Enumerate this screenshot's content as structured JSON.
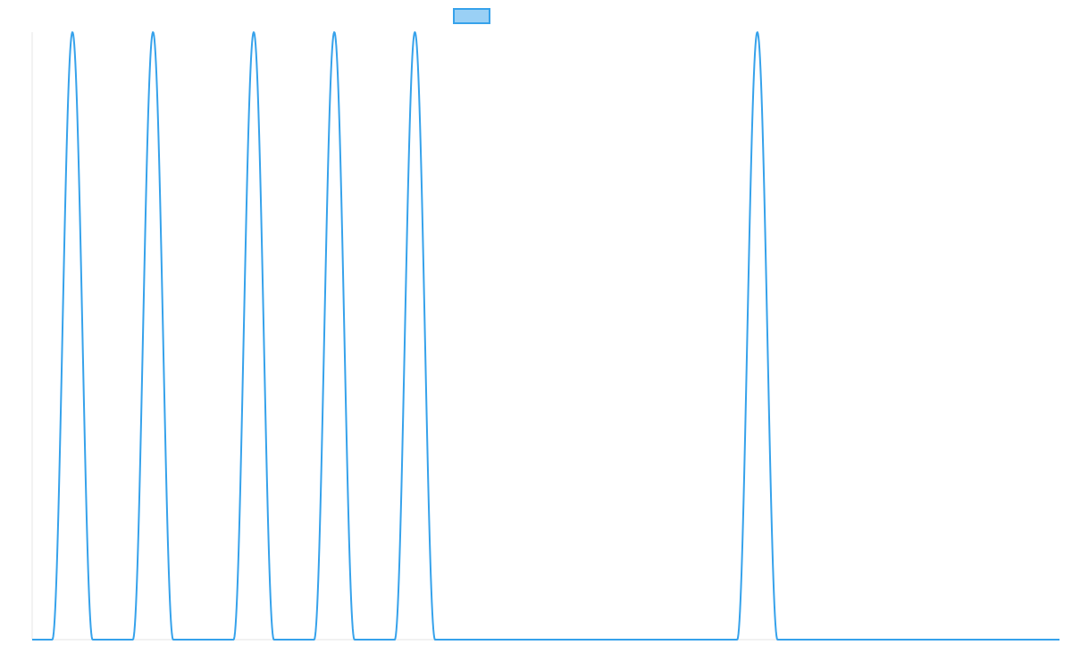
{
  "chart_data": {
    "type": "line",
    "title": "",
    "xlabel": "",
    "ylabel": "",
    "grid": false,
    "legend": "top-center",
    "ylim": [
      0,
      1
    ],
    "series": [
      {
        "name": "",
        "color": "#36A2EB",
        "fill_color": "#9AD0F5",
        "peaks": [
          {
            "center": 1,
            "half_width": 0.5,
            "height": 1
          },
          {
            "center": 3,
            "half_width": 0.5,
            "height": 1
          },
          {
            "center": 5.5,
            "half_width": 0.5,
            "height": 1
          },
          {
            "center": 7.5,
            "half_width": 0.5,
            "height": 1
          },
          {
            "center": 9.5,
            "half_width": 0.5,
            "height": 1
          },
          {
            "center": 18,
            "half_width": 0.5,
            "height": 1
          }
        ]
      }
    ],
    "xlim": [
      0,
      25.5
    ]
  }
}
